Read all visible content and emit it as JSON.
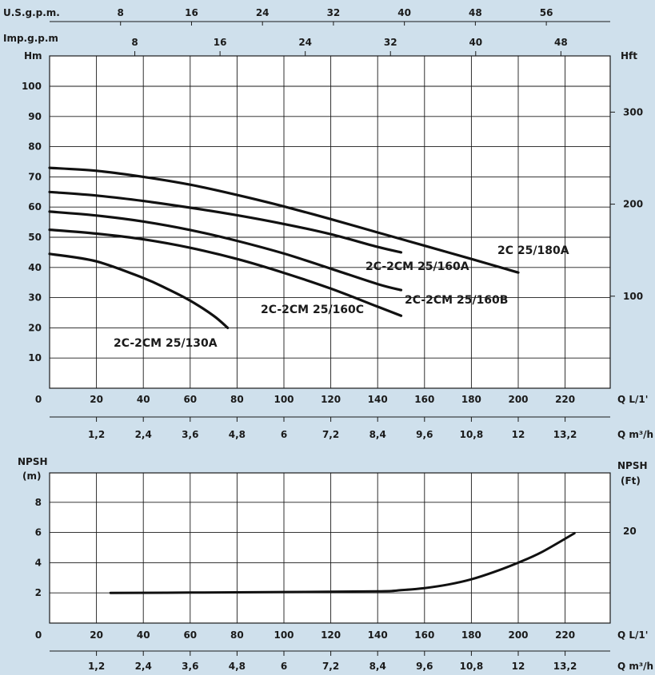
{
  "chart_data": [
    {
      "type": "line",
      "name": "head-chart",
      "axis_labels": {
        "us_gpm": "U.S.g.p.m.",
        "imp_gpm": "Imp.g.p.m",
        "hm": "Hm",
        "hft": "Hft",
        "q_lmin": "Q L/1'",
        "q_m3h": "Q m³/h"
      },
      "x": {
        "label": "Q L/1'",
        "range": [
          0,
          240
        ],
        "ticks": [
          "0",
          "20",
          "40",
          "60",
          "80",
          "100",
          "120",
          "140",
          "160",
          "180",
          "200",
          "220"
        ]
      },
      "y": {
        "label": "Hm",
        "range": [
          0,
          110
        ],
        "ticks": [
          "10",
          "20",
          "30",
          "40",
          "50",
          "60",
          "70",
          "80",
          "90",
          "100"
        ]
      },
      "y_right": {
        "label": "Hft",
        "ticks": [
          {
            "v": 100,
            "label": "100"
          },
          {
            "v": 200,
            "label": "200"
          },
          {
            "v": 300,
            "label": "300"
          }
        ]
      },
      "x_top_us": {
        "label": "U.S.g.p.m.",
        "ticks": [
          "8",
          "16",
          "24",
          "32",
          "40",
          "48",
          "56"
        ]
      },
      "x_top_imp": {
        "label": "Imp.g.p.m",
        "ticks": [
          "8",
          "16",
          "24",
          "32",
          "40",
          "48"
        ]
      },
      "x_bottom_m3h": {
        "label": "Q m³/h",
        "ticks": [
          "1,2",
          "2,4",
          "3,6",
          "4,8",
          "6",
          "7,2",
          "8,4",
          "9,6",
          "10,8",
          "12",
          "13,2"
        ]
      },
      "grid": true,
      "series": [
        {
          "name": "2C 25/180A",
          "x": [
            0,
            20,
            40,
            60,
            80,
            100,
            120,
            140,
            160,
            180,
            200
          ],
          "y": [
            73,
            72,
            70,
            67.4,
            64,
            60.2,
            56,
            51.6,
            47.2,
            42.8,
            38.3
          ]
        },
        {
          "name": "2C-2CM 25/160A",
          "x": [
            0,
            20,
            40,
            60,
            80,
            100,
            120,
            140,
            150
          ],
          "y": [
            65,
            63.8,
            62,
            59.8,
            57.3,
            54.4,
            51,
            46.8,
            45
          ]
        },
        {
          "name": "2C-2CM 25/160B",
          "x": [
            0,
            20,
            40,
            60,
            80,
            100,
            120,
            140,
            150
          ],
          "y": [
            58.5,
            57.2,
            55.2,
            52.4,
            48.8,
            44.6,
            39.6,
            34.5,
            32.5
          ]
        },
        {
          "name": "2C-2CM 25/160C",
          "x": [
            0,
            20,
            40,
            60,
            80,
            100,
            120,
            140,
            150
          ],
          "y": [
            52.5,
            51.2,
            49.3,
            46.5,
            42.8,
            38.2,
            33,
            27,
            24
          ]
        },
        {
          "name": "2C-2CM 25/130A",
          "x": [
            0,
            20,
            40,
            50,
            60,
            70,
            76
          ],
          "y": [
            44.5,
            42,
            36.5,
            33,
            29,
            24,
            20
          ]
        }
      ]
    },
    {
      "type": "line",
      "name": "npsh-chart",
      "axis_labels": {
        "npsh_left": "NPSH",
        "m": "(m)",
        "npsh_right": "NPSH",
        "ft": "(Ft)",
        "q_lmin": "Q L/1'",
        "q_m3h": "Q m³/h"
      },
      "x": {
        "label": "Q L/1'",
        "range": [
          0,
          240
        ],
        "ticks": [
          "0",
          "20",
          "40",
          "60",
          "80",
          "100",
          "120",
          "140",
          "160",
          "180",
          "200",
          "220"
        ]
      },
      "y": {
        "label": "NPSH (m)",
        "range": [
          0,
          10
        ],
        "ticks": [
          "2",
          "4",
          "6",
          "8"
        ]
      },
      "y_right": {
        "label": "NPSH (Ft)",
        "ticks": [
          {
            "v": 20,
            "label": "20"
          }
        ]
      },
      "x_bottom_m3h": {
        "label": "Q m³/h",
        "ticks": [
          "1,2",
          "2,4",
          "3,6",
          "4,8",
          "6",
          "7,2",
          "8,4",
          "9,6",
          "10,8",
          "12",
          "13,2"
        ]
      },
      "grid": true,
      "series": [
        {
          "x": [
            26,
            60,
            100,
            140,
            150,
            160,
            170,
            180,
            190,
            200,
            210,
            224
          ],
          "y": [
            2.0,
            2.02,
            2.06,
            2.1,
            2.18,
            2.32,
            2.55,
            2.9,
            3.4,
            4.0,
            4.7,
            5.95
          ]
        }
      ]
    }
  ]
}
